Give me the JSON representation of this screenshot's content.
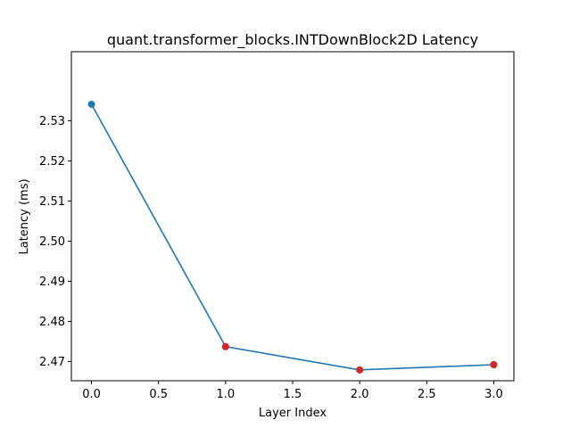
{
  "chart_data": {
    "type": "line",
    "title": "quant.transformer_blocks.INTDownBlock2D Latency",
    "xlabel": "Layer Index",
    "ylabel": "Latency (ms)",
    "xlim": [
      -0.15,
      3.15
    ],
    "ylim": [
      2.4652,
      2.5472
    ],
    "xticks": [
      0.0,
      0.5,
      1.0,
      1.5,
      2.0,
      2.5,
      3.0
    ],
    "xtick_labels": [
      "0.0",
      "0.5",
      "1.0",
      "1.5",
      "2.0",
      "2.5",
      "3.0"
    ],
    "yticks": [
      2.47,
      2.48,
      2.49,
      2.5,
      2.51,
      2.52,
      2.53
    ],
    "ytick_labels": [
      "2.47",
      "2.48",
      "2.49",
      "2.50",
      "2.51",
      "2.52",
      "2.53"
    ],
    "grid": false,
    "series": [
      {
        "x": [
          0,
          1,
          2,
          3
        ],
        "y": [
          2.5341,
          2.4737,
          2.4679,
          2.4692
        ],
        "color": "#1f77b4"
      }
    ],
    "highlighted_points": {
      "x": [
        1,
        2,
        3
      ],
      "y": [
        2.4737,
        2.4679,
        2.4692
      ],
      "color": "#d62728"
    }
  }
}
